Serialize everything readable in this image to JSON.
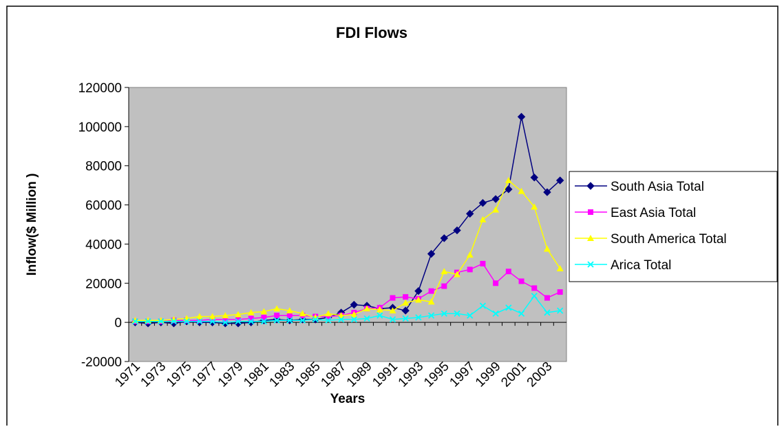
{
  "chart_data": {
    "type": "line",
    "title": "FDI Flows",
    "x_label": "Years",
    "y_label": "Inflow($ Million )",
    "categories": [
      "1971",
      null,
      "1973",
      null,
      "1975",
      null,
      "1977",
      null,
      "1979",
      null,
      "1981",
      null,
      "1983",
      null,
      "1985",
      null,
      "1987",
      null,
      "1989",
      null,
      "1991",
      null,
      "1993",
      null,
      "1995",
      null,
      "1997",
      null,
      "1999",
      null,
      "2001",
      null,
      "2003",
      null
    ],
    "series": [
      {
        "name": "South Asia Total",
        "color": "#000080",
        "marker": "diamond",
        "values": [
          0,
          -500,
          0,
          -500,
          500,
          0,
          0,
          -500,
          -500,
          0,
          1000,
          1500,
          1000,
          1500,
          1500,
          2500,
          5000,
          9000,
          8500,
          7000,
          7500,
          6000,
          16000,
          35000,
          43000,
          47000,
          55500,
          61000,
          63000,
          68000,
          105000,
          74000,
          66500,
          72500
        ]
      },
      {
        "name": "East Asia Total",
        "color": "#FF00FF",
        "marker": "square",
        "values": [
          500,
          500,
          500,
          1000,
          1000,
          1000,
          1500,
          1500,
          1500,
          2000,
          2500,
          3500,
          3500,
          3500,
          3000,
          3000,
          3500,
          5000,
          7000,
          7500,
          12500,
          13000,
          12000,
          16000,
          18500,
          25500,
          27000,
          30000,
          20000,
          26000,
          21000,
          17500,
          12500,
          15500
        ]
      },
      {
        "name": "South America Total",
        "color": "#FFFF00",
        "marker": "triangle",
        "values": [
          1000,
          1000,
          1000,
          1500,
          2000,
          3000,
          3000,
          3500,
          4000,
          5000,
          5500,
          7000,
          6000,
          4500,
          2500,
          4500,
          3500,
          4000,
          7000,
          6500,
          6000,
          10000,
          11500,
          10500,
          26000,
          24500,
          34500,
          52500,
          57500,
          72500,
          67000,
          59000,
          37500,
          27500
        ]
      },
      {
        "name": "Arica Total",
        "color": "#00FFFF",
        "marker": "x",
        "values": [
          500,
          500,
          500,
          500,
          500,
          500,
          500,
          0,
          500,
          500,
          500,
          1000,
          1000,
          1000,
          1500,
          1000,
          1500,
          1500,
          2000,
          3500,
          1500,
          2000,
          2500,
          3500,
          4500,
          4500,
          3500,
          8500,
          4500,
          7500,
          4500,
          13500,
          5000,
          6000
        ]
      }
    ],
    "ylim": [
      -20000,
      120000
    ],
    "yticks": [
      -20000,
      0,
      20000,
      40000,
      60000,
      80000,
      100000,
      120000
    ],
    "plot_background": "#C0C0C0",
    "legend": "right"
  }
}
